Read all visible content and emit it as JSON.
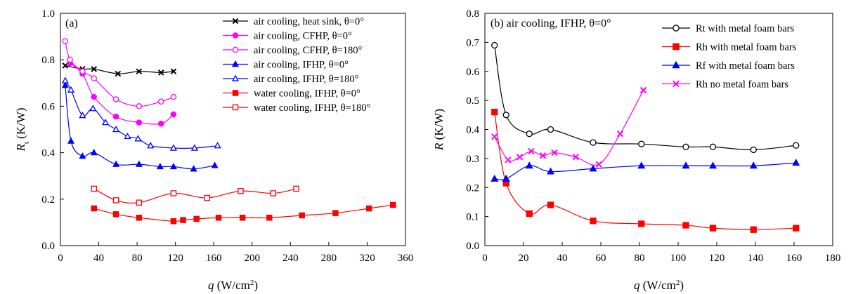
{
  "chart_data": [
    {
      "type": "line",
      "panel_label": "(a)",
      "xlabel": "q (W/cm2)",
      "ylabel": "Rt (K/W)",
      "xlim": [
        0,
        360
      ],
      "ylim": [
        0,
        1.0
      ],
      "xticks": [
        "0",
        "40",
        "80",
        "120",
        "160",
        "200",
        "240",
        "280",
        "320",
        "360"
      ],
      "yticks": [
        "0.0",
        "0.2",
        "0.4",
        "0.6",
        "0.8",
        "1.0"
      ],
      "legend_position": "top-right",
      "series": [
        {
          "name": "air cooling, heat sink, θ=0°",
          "color": "#000000",
          "marker": "x",
          "fill": false,
          "x": [
            5,
            23,
            35,
            60,
            82,
            105,
            118
          ],
          "y": [
            0.775,
            0.76,
            0.76,
            0.74,
            0.75,
            0.745,
            0.75
          ]
        },
        {
          "name": "air cooling, CFHP, θ=0°",
          "color": "#ff00ff",
          "marker": "circle",
          "fill": true,
          "x": [
            10,
            23,
            35,
            58,
            82,
            105,
            118
          ],
          "y": [
            0.785,
            0.74,
            0.64,
            0.555,
            0.53,
            0.525,
            0.565
          ]
        },
        {
          "name": "air cooling, CFHP, θ=180°",
          "color": "#ff00ff",
          "marker": "circle",
          "fill": false,
          "x": [
            5,
            10,
            23,
            35,
            58,
            82,
            105,
            118
          ],
          "y": [
            0.88,
            0.8,
            0.75,
            0.72,
            0.63,
            0.6,
            0.62,
            0.64
          ]
        },
        {
          "name": "air cooling, IFHP, θ=0°",
          "color": "#0000ff",
          "marker": "triangle",
          "fill": true,
          "x": [
            5,
            11,
            23,
            35,
            58,
            82,
            104,
            118,
            139,
            161
          ],
          "y": [
            0.69,
            0.45,
            0.385,
            0.4,
            0.35,
            0.35,
            0.34,
            0.34,
            0.33,
            0.345
          ]
        },
        {
          "name": "air cooling, IFHP, θ=180°",
          "color": "#0000ff",
          "marker": "triangle",
          "fill": false,
          "x": [
            5,
            11,
            23,
            34,
            47,
            58,
            70,
            81,
            94,
            118,
            140,
            164
          ],
          "y": [
            0.71,
            0.67,
            0.56,
            0.59,
            0.53,
            0.5,
            0.47,
            0.46,
            0.43,
            0.42,
            0.42,
            0.43
          ]
        },
        {
          "name": "water cooling, IFHP, θ=0°",
          "color": "#ff0000",
          "marker": "square",
          "fill": true,
          "x": [
            35,
            58,
            82,
            118,
            128,
            142,
            165,
            190,
            218,
            252,
            287,
            322,
            347
          ],
          "y": [
            0.16,
            0.135,
            0.12,
            0.105,
            0.11,
            0.115,
            0.12,
            0.12,
            0.12,
            0.13,
            0.14,
            0.16,
            0.175
          ]
        },
        {
          "name": "water cooling, IFHP, θ=180°",
          "color": "#ff0000",
          "marker": "square",
          "fill": false,
          "x": [
            35,
            58,
            82,
            118,
            153,
            188,
            222,
            246
          ],
          "y": [
            0.245,
            0.195,
            0.185,
            0.225,
            0.205,
            0.235,
            0.225,
            0.245
          ]
        }
      ]
    },
    {
      "type": "line",
      "panel_label": "(b) air cooling, IFHP, θ=0°",
      "xlabel": "q (W/cm2)",
      "ylabel": "R (K/W)",
      "xlim": [
        0,
        180
      ],
      "ylim": [
        0,
        0.8
      ],
      "xticks": [
        "0",
        "20",
        "40",
        "60",
        "80",
        "100",
        "120",
        "140",
        "160",
        "180"
      ],
      "yticks": [
        "0.0",
        "0.1",
        "0.2",
        "0.3",
        "0.4",
        "0.5",
        "0.6",
        "0.7",
        "0.8"
      ],
      "legend_position": "top-right",
      "series": [
        {
          "name": "Rt with metal foam bars",
          "color": "#000000",
          "marker": "circle",
          "fill": false,
          "x": [
            5,
            11,
            23,
            34,
            56,
            81,
            104,
            118,
            139,
            161
          ],
          "y": [
            0.69,
            0.45,
            0.385,
            0.4,
            0.355,
            0.35,
            0.34,
            0.34,
            0.33,
            0.345
          ]
        },
        {
          "name": "Rh with metal foam bars",
          "color": "#ff0000",
          "marker": "square",
          "fill": true,
          "x": [
            5,
            11,
            23,
            34,
            56,
            81,
            104,
            118,
            139,
            161
          ],
          "y": [
            0.46,
            0.215,
            0.11,
            0.14,
            0.085,
            0.075,
            0.07,
            0.06,
            0.055,
            0.06
          ]
        },
        {
          "name": "Rf with metal foam bars",
          "color": "#0000ff",
          "marker": "triangle",
          "fill": true,
          "x": [
            5,
            11,
            23,
            34,
            56,
            81,
            104,
            118,
            139,
            161
          ],
          "y": [
            0.23,
            0.23,
            0.275,
            0.255,
            0.265,
            0.275,
            0.275,
            0.275,
            0.275,
            0.285
          ]
        },
        {
          "name": "Rh no metal foam bars",
          "color": "#ff00ff",
          "marker": "x",
          "fill": false,
          "x": [
            5,
            12,
            18,
            24,
            30,
            36,
            47,
            59,
            70,
            82
          ],
          "y": [
            0.375,
            0.295,
            0.305,
            0.325,
            0.31,
            0.32,
            0.305,
            0.28,
            0.385,
            0.535
          ]
        }
      ]
    }
  ]
}
